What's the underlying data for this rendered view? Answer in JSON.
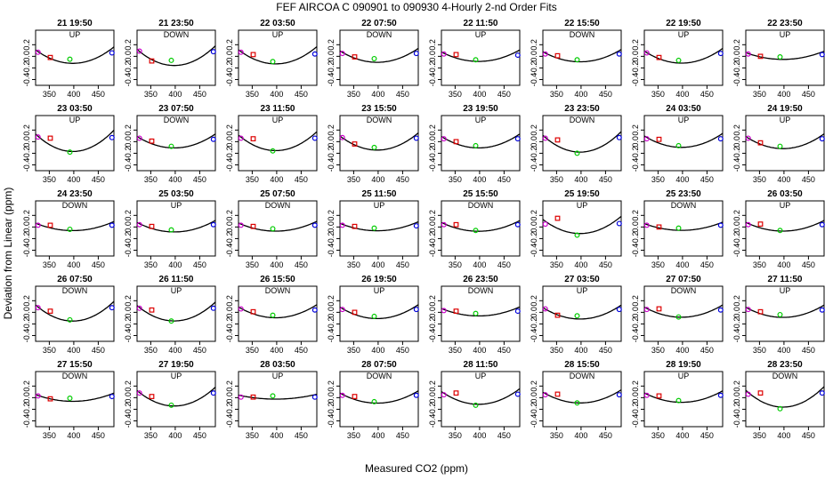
{
  "figure": {
    "title": "FEF   AIRCOA C   090901 to 090930   4-Hourly 2-nd Order Fits",
    "xlabel": "Measured CO2 (ppm)",
    "ylabel": "Deviation from Linear (ppm)"
  },
  "chart_data": {
    "type": "scatter",
    "xlim": [
      322,
      482
    ],
    "ylim": [
      -0.5,
      0.45
    ],
    "x_ticks": [
      350,
      400,
      450
    ],
    "y_ticks": [
      0.2,
      0.0,
      -0.2,
      -0.4
    ],
    "y_tick_labels": [
      "0.2",
      "0.0",
      "-0.2",
      "-0.4"
    ],
    "standards_x": [
      327,
      352,
      392,
      478
    ],
    "standards_colors": [
      "#cc00cc",
      "#dd0000",
      "#00cc00",
      "#0000dd"
    ],
    "curve_color": "#000000",
    "grid": false,
    "panels": [
      {
        "title": "21 19:50",
        "mode": "UP",
        "y": [
          0.07,
          -0.02,
          -0.05,
          0.06
        ],
        "curv": 4e-05
      },
      {
        "title": "21 23:50",
        "mode": "DOWN",
        "y": [
          0.09,
          -0.08,
          -0.07,
          0.08
        ],
        "curv": 4.8e-05
      },
      {
        "title": "22 03:50",
        "mode": "UP",
        "y": [
          0.07,
          0.03,
          -0.09,
          0.04
        ],
        "curv": 4.2e-05
      },
      {
        "title": "22 07:50",
        "mode": "DOWN",
        "y": [
          0.05,
          -0.01,
          -0.04,
          0.05
        ],
        "curv": 3.4e-05
      },
      {
        "title": "22 11:50",
        "mode": "UP",
        "y": [
          0.04,
          0.03,
          -0.06,
          0.02
        ],
        "curv": 2.8e-05
      },
      {
        "title": "22 15:50",
        "mode": "DOWN",
        "y": [
          0.04,
          0.01,
          -0.06,
          0.04
        ],
        "curv": 3e-05
      },
      {
        "title": "22 19:50",
        "mode": "UP",
        "y": [
          0.06,
          -0.02,
          -0.07,
          0.05
        ],
        "curv": 3.6e-05
      },
      {
        "title": "22 23:50",
        "mode": "UP",
        "y": [
          0.04,
          0.0,
          -0.01,
          0.03
        ],
        "curv": 2e-05
      },
      {
        "title": "23 03:50",
        "mode": "UP",
        "y": [
          0.08,
          0.06,
          -0.18,
          0.07
        ],
        "curv": 5.2e-05
      },
      {
        "title": "23 07:50",
        "mode": "DOWN",
        "y": [
          0.06,
          0.01,
          -0.08,
          0.04
        ],
        "curv": 3.4e-05
      },
      {
        "title": "23 11:50",
        "mode": "UP",
        "y": [
          0.06,
          0.05,
          -0.16,
          0.06
        ],
        "curv": 4.6e-05
      },
      {
        "title": "23 15:50",
        "mode": "DOWN",
        "y": [
          0.07,
          -0.04,
          -0.1,
          0.06
        ],
        "curv": 4.2e-05
      },
      {
        "title": "23 19:50",
        "mode": "UP",
        "y": [
          0.05,
          0.0,
          -0.07,
          0.05
        ],
        "curv": 3.4e-05
      },
      {
        "title": "23 23:50",
        "mode": "DOWN",
        "y": [
          0.06,
          0.03,
          -0.2,
          0.07
        ],
        "curv": 5e-05
      },
      {
        "title": "24 03:50",
        "mode": "UP",
        "y": [
          0.05,
          0.04,
          -0.07,
          0.05
        ],
        "curv": 3.4e-05
      },
      {
        "title": "24 19:50",
        "mode": "UP",
        "y": [
          0.06,
          -0.02,
          -0.08,
          0.05
        ],
        "curv": 3.6e-05
      },
      {
        "title": "24 23:50",
        "mode": "DOWN",
        "y": [
          0.03,
          0.03,
          -0.04,
          0.03
        ],
        "curv": 2.2e-05
      },
      {
        "title": "25 03:50",
        "mode": "UP",
        "y": [
          0.04,
          0.01,
          -0.05,
          0.04
        ],
        "curv": 2.8e-05
      },
      {
        "title": "25 07:50",
        "mode": "DOWN",
        "y": [
          0.03,
          0.01,
          -0.03,
          0.03
        ],
        "curv": 2.4e-05
      },
      {
        "title": "25 11:50",
        "mode": "UP",
        "y": [
          0.03,
          0.01,
          -0.02,
          0.02
        ],
        "curv": 2.2e-05
      },
      {
        "title": "25 15:50",
        "mode": "DOWN",
        "y": [
          0.04,
          0.04,
          -0.06,
          0.04
        ],
        "curv": 2.6e-05
      },
      {
        "title": "25 19:50",
        "mode": "UP",
        "y": [
          0.05,
          0.15,
          -0.14,
          0.06
        ],
        "curv": 4.2e-05
      },
      {
        "title": "25 23:50",
        "mode": "DOWN",
        "y": [
          0.03,
          0.0,
          -0.02,
          0.03
        ],
        "curv": 2e-05
      },
      {
        "title": "26 03:50",
        "mode": "UP",
        "y": [
          0.04,
          0.05,
          -0.06,
          0.04
        ],
        "curv": 2.6e-05
      },
      {
        "title": "26 07:50",
        "mode": "DOWN",
        "y": [
          0.08,
          0.02,
          -0.13,
          0.08
        ],
        "curv": 4.8e-05
      },
      {
        "title": "26 11:50",
        "mode": "UP",
        "y": [
          0.07,
          0.04,
          -0.15,
          0.07
        ],
        "curv": 4.6e-05
      },
      {
        "title": "26 15:50",
        "mode": "DOWN",
        "y": [
          0.06,
          0.01,
          -0.05,
          0.04
        ],
        "curv": 3.2e-05
      },
      {
        "title": "26 19:50",
        "mode": "UP",
        "y": [
          0.05,
          0.0,
          -0.07,
          0.05
        ],
        "curv": 3.4e-05
      },
      {
        "title": "26 23:50",
        "mode": "DOWN",
        "y": [
          0.03,
          0.02,
          -0.02,
          0.02
        ],
        "curv": 2.2e-05
      },
      {
        "title": "27 03:50",
        "mode": "UP",
        "y": [
          0.06,
          -0.05,
          -0.06,
          0.05
        ],
        "curv": 3.4e-05
      },
      {
        "title": "27 07:50",
        "mode": "DOWN",
        "y": [
          0.05,
          0.06,
          -0.08,
          0.04
        ],
        "curv": 3e-05
      },
      {
        "title": "27 11:50",
        "mode": "UP",
        "y": [
          0.05,
          0.01,
          -0.04,
          0.04
        ],
        "curv": 3e-05
      },
      {
        "title": "27 15:50",
        "mode": "DOWN",
        "y": [
          0.03,
          -0.02,
          -0.01,
          0.02
        ],
        "curv": 2e-05
      },
      {
        "title": "27 19:50",
        "mode": "UP",
        "y": [
          0.08,
          0.02,
          -0.13,
          0.08
        ],
        "curv": 4.6e-05
      },
      {
        "title": "28 03:50",
        "mode": "UP",
        "y": [
          0.01,
          0.01,
          0.03,
          0.01
        ],
        "curv": 1.2e-05
      },
      {
        "title": "28 07:50",
        "mode": "DOWN",
        "y": [
          0.04,
          0.02,
          -0.07,
          0.04
        ],
        "curv": 3e-05
      },
      {
        "title": "28 11:50",
        "mode": "UP",
        "y": [
          0.05,
          0.08,
          -0.13,
          0.06
        ],
        "curv": 3.8e-05
      },
      {
        "title": "28 15:50",
        "mode": "DOWN",
        "y": [
          0.05,
          0.06,
          -0.09,
          0.05
        ],
        "curv": 3.2e-05
      },
      {
        "title": "28 19:50",
        "mode": "UP",
        "y": [
          0.04,
          0.03,
          -0.05,
          0.04
        ],
        "curv": 2.8e-05
      },
      {
        "title": "28 23:50",
        "mode": "DOWN",
        "y": [
          0.06,
          0.08,
          -0.19,
          0.08
        ],
        "curv": 5e-05
      }
    ]
  }
}
